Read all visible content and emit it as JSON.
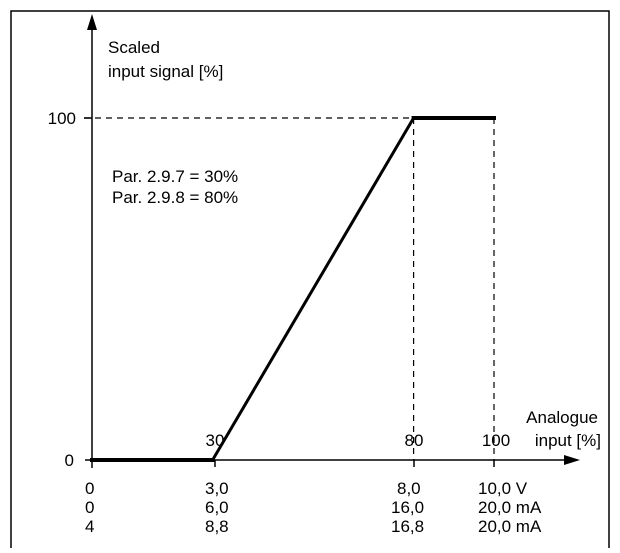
{
  "chart_data": {
    "type": "line",
    "ylabel": [
      "Scaled",
      "input signal [%]"
    ],
    "xlabel": [
      "Analogue",
      "input [%]"
    ],
    "y_ticks": [
      "100",
      "0"
    ],
    "x_tick_labels": [
      "30",
      "80",
      "100"
    ],
    "parameters": [
      "Par. 2.9.7 = 30%",
      "Par. 2.9.8 = 80%"
    ],
    "bottom_rows": [
      [
        "0",
        "3,0",
        "8,0",
        "10,0 V"
      ],
      [
        "0",
        "6,0",
        "16,0",
        "20,0 mA"
      ],
      [
        "4",
        "8,8",
        "16,8",
        "20,0 mA"
      ]
    ],
    "x": [
      0,
      30,
      80,
      100
    ],
    "values": [
      0,
      0,
      100,
      100
    ],
    "xlim": [
      0,
      100
    ],
    "ylim": [
      0,
      100
    ],
    "line_color": "#000000"
  }
}
